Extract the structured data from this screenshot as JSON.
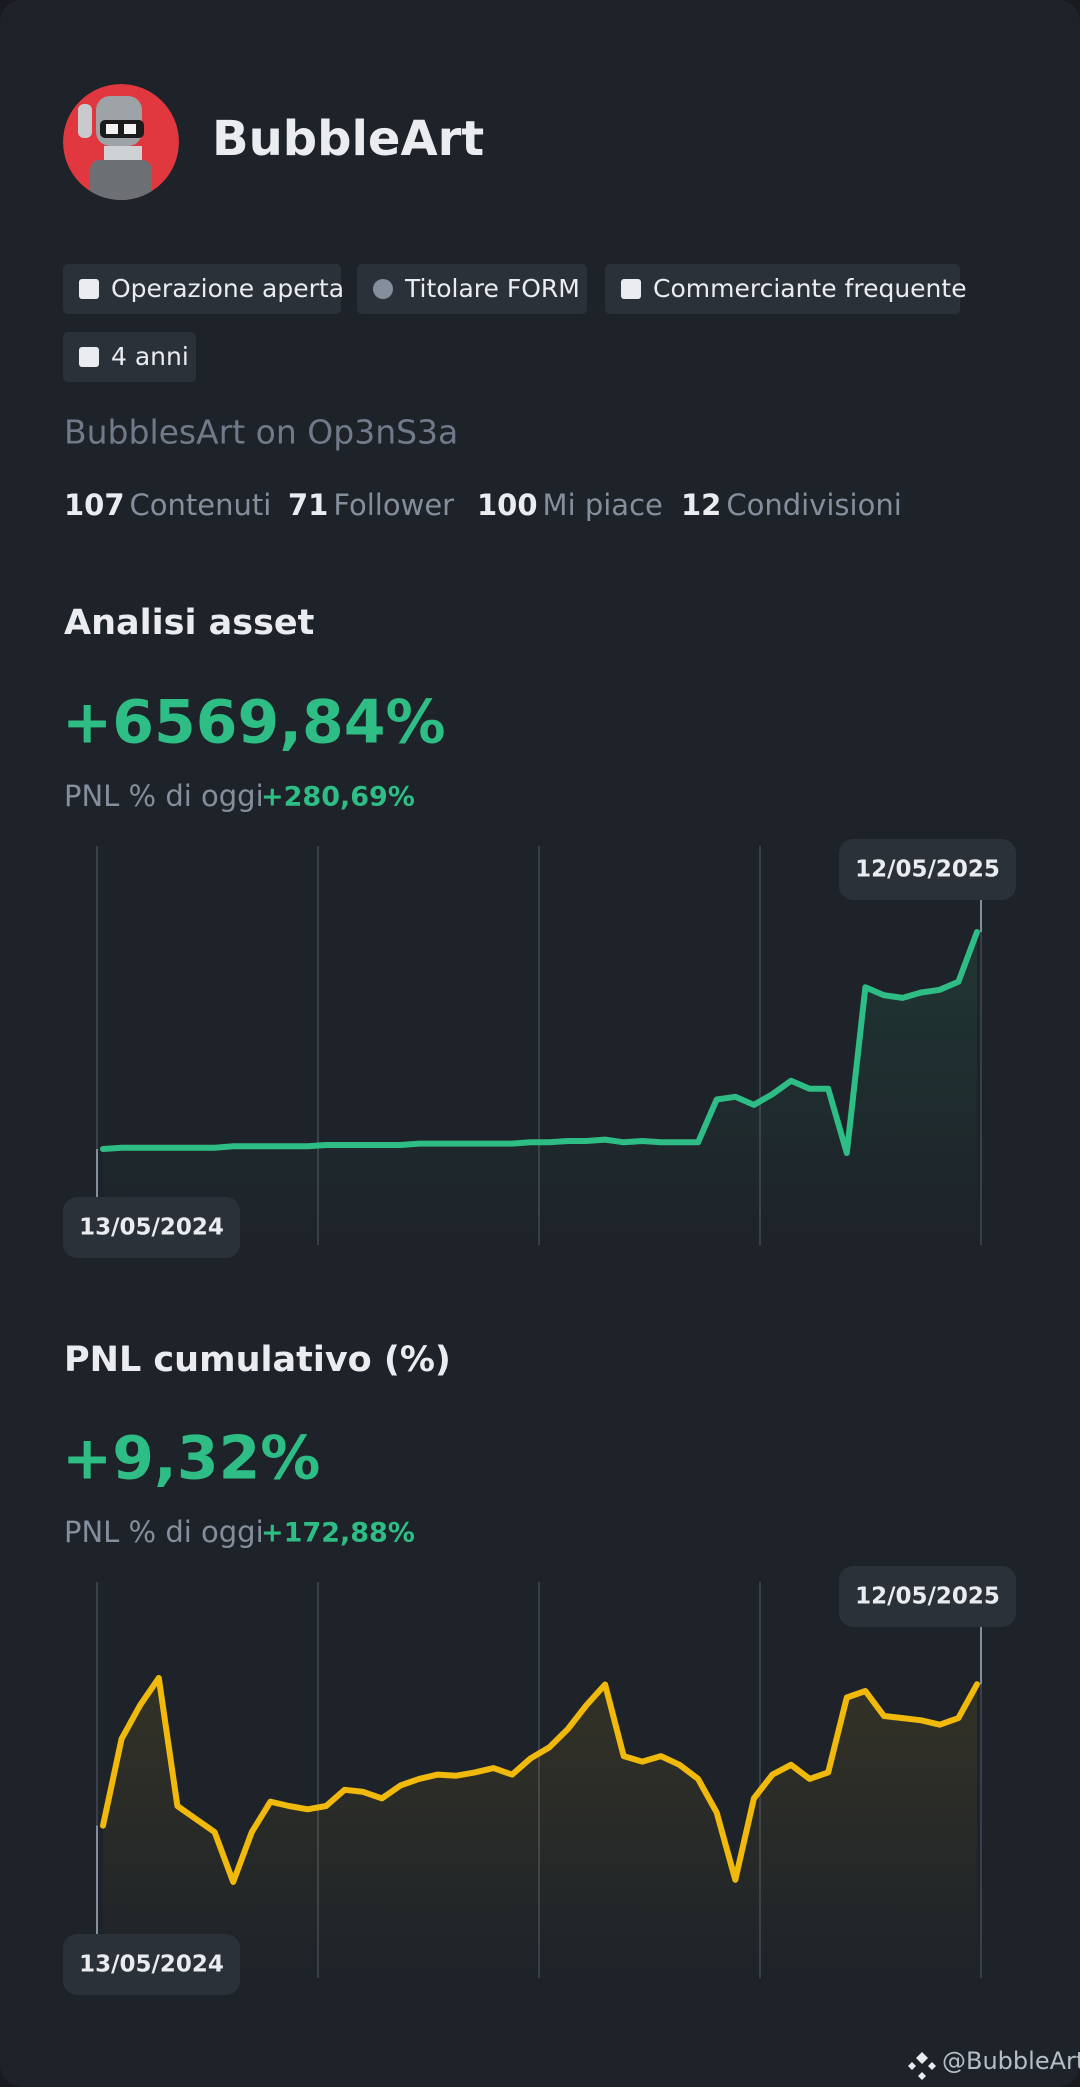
{
  "profile": {
    "name": "BubbleArt",
    "tags": [
      "Operazione aperta",
      "Titolare FORM",
      "Commerciante frequente",
      "4 anni"
    ],
    "bio": "BubblesArt on Op3nS3a",
    "stats": [
      {
        "value": 107,
        "label": "Contenuti"
      },
      {
        "value": 71,
        "label": "Follower"
      },
      {
        "value": 100,
        "label": "Mi piace"
      },
      {
        "value": 12,
        "label": "Condivisioni"
      }
    ]
  },
  "chart_data": [
    {
      "type": "line",
      "title": "Analisi asset",
      "headline": "+6569,84%",
      "today_label": "PNL % di oggi",
      "today_value": "+280,69%",
      "categories": [
        "13/05/2024",
        null,
        null,
        null,
        null,
        null,
        null,
        null,
        null,
        null,
        null,
        null,
        null,
        null,
        null,
        null,
        null,
        null,
        null,
        null,
        null,
        null,
        null,
        null,
        null,
        null,
        null,
        null,
        null,
        null,
        null,
        null,
        null,
        null,
        null,
        null,
        null,
        null,
        null,
        null,
        null,
        null,
        null,
        null,
        null,
        null,
        null,
        "12/05/2025"
      ],
      "series": [
        {
          "color": "#2ebd85",
          "values": [
            80,
            120,
            120,
            120,
            120,
            120,
            120,
            160,
            160,
            160,
            160,
            160,
            200,
            200,
            200,
            200,
            200,
            240,
            240,
            240,
            240,
            240,
            240,
            280,
            280,
            320,
            320,
            360,
            280,
            320,
            280,
            280,
            280,
            1560,
            1640,
            1400,
            1720,
            2120,
            1880,
            1880,
            -40,
            4920,
            4680,
            4600,
            4760,
            4840,
            5080,
            6570
          ]
        }
      ]
    },
    {
      "type": "line",
      "title": "PNL cumulativo (%)",
      "headline": "+9,32%",
      "today_label": "PNL % di oggi",
      "today_value": "+172,88%",
      "categories": [
        "13/05/2024",
        null,
        null,
        null,
        null,
        null,
        null,
        null,
        null,
        null,
        null,
        null,
        null,
        null,
        null,
        null,
        null,
        null,
        null,
        null,
        null,
        null,
        null,
        null,
        null,
        null,
        null,
        null,
        null,
        null,
        null,
        null,
        null,
        null,
        null,
        null,
        null,
        null,
        null,
        null,
        null,
        null,
        null,
        null,
        null,
        null,
        null,
        "12/05/2025"
      ],
      "series": [
        {
          "color": "#f0b90b",
          "values": [
            -3.7,
            4.3,
            7.4,
            9.9,
            -1.9,
            -3.1,
            -4.3,
            -8.9,
            -4.3,
            -1.5,
            -1.9,
            -2.2,
            -1.9,
            -0.4,
            -0.6,
            -1.2,
            0,
            0.6,
            1.0,
            0.9,
            1.2,
            1.6,
            1.0,
            2.5,
            3.5,
            5.2,
            7.4,
            9.3,
            2.7,
            2.2,
            2.7,
            1.9,
            0.6,
            -2.5,
            -8.7,
            -1.2,
            1.0,
            1.9,
            0.6,
            1.2,
            8.1,
            8.7,
            6.4,
            6.2,
            6.0,
            5.6,
            6.2,
            9.32
          ]
        }
      ]
    }
  ],
  "footer": {
    "handle": "@BubbleArt"
  }
}
